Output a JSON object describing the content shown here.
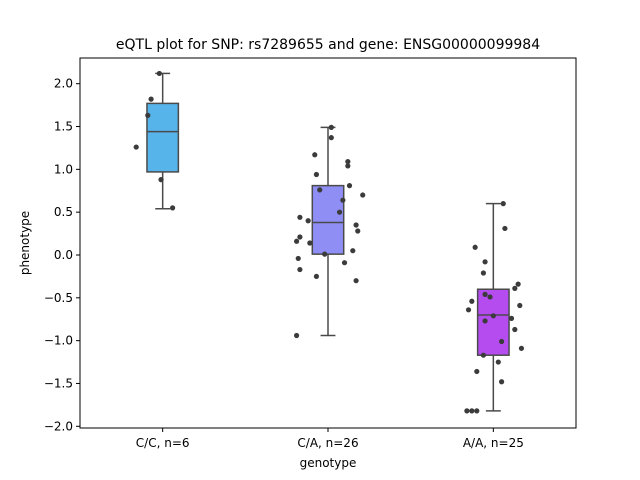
{
  "chart_data": {
    "type": "box",
    "title": "eQTL plot for SNP: rs7289655 and gene: ENSG00000099984",
    "xlabel": "genotype",
    "ylabel": "phenotype",
    "ylim": [
      -2.02,
      2.3
    ],
    "yticks": [
      2.0,
      1.5,
      1.0,
      0.5,
      0.0,
      -0.5,
      -1.0,
      -1.5,
      -2.0
    ],
    "ytick_labels": [
      "2.0",
      "1.5",
      "1.0",
      "0.5",
      "0.0",
      "−0.5",
      "−1.0",
      "−1.5",
      "−2.0"
    ],
    "grid": false,
    "legend": "none",
    "categories": [
      "C/C, n=6",
      "C/A, n=26",
      "A/A, n=25"
    ],
    "boxes": [
      {
        "category": "C/C, n=6",
        "color": "#56b4eb",
        "whisker_low": 0.54,
        "q1": 0.97,
        "median": 1.44,
        "q3": 1.77,
        "whisker_high": 2.12
      },
      {
        "category": "C/A, n=26",
        "color": "#8e8ef5",
        "whisker_low": -0.94,
        "q1": 0.01,
        "median": 0.38,
        "q3": 0.81,
        "whisker_high": 1.49
      },
      {
        "category": "A/A, n=25",
        "color": "#b44cf0",
        "whisker_low": -1.82,
        "q1": -1.17,
        "median": -0.7,
        "q3": -0.4,
        "whisker_high": 0.6
      }
    ],
    "points": [
      [
        {
          "dx": -0.02,
          "y": 2.12
        },
        {
          "dx": -0.07,
          "y": 1.82
        },
        {
          "dx": -0.09,
          "y": 1.63
        },
        {
          "dx": -0.16,
          "y": 1.26
        },
        {
          "dx": -0.01,
          "y": 0.88
        },
        {
          "dx": 0.06,
          "y": 0.55
        }
      ],
      [
        {
          "dx": 0.02,
          "y": 1.49
        },
        {
          "dx": 0.02,
          "y": 1.37
        },
        {
          "dx": -0.08,
          "y": 1.17
        },
        {
          "dx": 0.12,
          "y": 1.09
        },
        {
          "dx": 0.12,
          "y": 1.04
        },
        {
          "dx": -0.07,
          "y": 0.94
        },
        {
          "dx": 0.13,
          "y": 0.81
        },
        {
          "dx": -0.05,
          "y": 0.76
        },
        {
          "dx": 0.21,
          "y": 0.7
        },
        {
          "dx": 0.09,
          "y": 0.64
        },
        {
          "dx": 0.07,
          "y": 0.5
        },
        {
          "dx": -0.17,
          "y": 0.44
        },
        {
          "dx": -0.12,
          "y": 0.4
        },
        {
          "dx": 0.17,
          "y": 0.35
        },
        {
          "dx": 0.18,
          "y": 0.28
        },
        {
          "dx": -0.17,
          "y": 0.21
        },
        {
          "dx": -0.19,
          "y": 0.16
        },
        {
          "dx": -0.11,
          "y": 0.14
        },
        {
          "dx": 0.15,
          "y": 0.05
        },
        {
          "dx": -0.02,
          "y": 0.01
        },
        {
          "dx": -0.18,
          "y": -0.04
        },
        {
          "dx": 0.1,
          "y": -0.09
        },
        {
          "dx": -0.17,
          "y": -0.17
        },
        {
          "dx": -0.07,
          "y": -0.25
        },
        {
          "dx": 0.17,
          "y": -0.3
        },
        {
          "dx": -0.19,
          "y": -0.94
        }
      ],
      [
        {
          "dx": 0.06,
          "y": 0.6
        },
        {
          "dx": 0.07,
          "y": 0.31
        },
        {
          "dx": -0.11,
          "y": 0.09
        },
        {
          "dx": -0.05,
          "y": -0.08
        },
        {
          "dx": -0.06,
          "y": -0.21
        },
        {
          "dx": 0.15,
          "y": -0.34
        },
        {
          "dx": 0.13,
          "y": -0.39
        },
        {
          "dx": -0.05,
          "y": -0.46
        },
        {
          "dx": -0.02,
          "y": -0.49
        },
        {
          "dx": -0.13,
          "y": -0.54
        },
        {
          "dx": 0.16,
          "y": -0.59
        },
        {
          "dx": -0.15,
          "y": -0.64
        },
        {
          "dx": 0.0,
          "y": -0.71
        },
        {
          "dx": 0.11,
          "y": -0.74
        },
        {
          "dx": -0.05,
          "y": -0.77
        },
        {
          "dx": 0.13,
          "y": -0.87
        },
        {
          "dx": 0.05,
          "y": -1.01
        },
        {
          "dx": 0.17,
          "y": -1.09
        },
        {
          "dx": -0.06,
          "y": -1.17
        },
        {
          "dx": 0.03,
          "y": -1.25
        },
        {
          "dx": -0.1,
          "y": -1.36
        },
        {
          "dx": 0.05,
          "y": -1.48
        },
        {
          "dx": -0.16,
          "y": -1.82
        },
        {
          "dx": -0.13,
          "y": -1.82
        },
        {
          "dx": -0.1,
          "y": -1.82
        }
      ]
    ],
    "colors": {
      "line": "#4a4a4a",
      "point": "#3b3b3b"
    }
  }
}
